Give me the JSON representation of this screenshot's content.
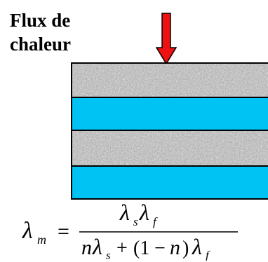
{
  "title": {
    "line1": "Flux de",
    "line2": "chaleur"
  },
  "arrow": {
    "icon": "down-arrow-icon",
    "fill": "#ee1111",
    "stroke": "#000000"
  },
  "layers": [
    {
      "kind": "solid",
      "texture": "granite-noise"
    },
    {
      "kind": "fluid",
      "color": "#00c3f4"
    },
    {
      "kind": "solid",
      "texture": "granite-noise"
    },
    {
      "kind": "fluid",
      "color": "#00c3f4"
    }
  ],
  "formula": {
    "lhs_symbol": "λ",
    "lhs_sub": "m",
    "equals": "=",
    "num_sym1": "λ",
    "num_sub1": "s",
    "num_sym2": "λ",
    "num_sub2": "f",
    "den_n1": "n",
    "den_sym1": "λ",
    "den_sub1": "s",
    "den_plus": "+",
    "den_paren_open": "(1",
    "den_minus": "−",
    "den_n2": "n",
    "den_paren_close": ")",
    "den_sym2": "λ",
    "den_sub2": "f"
  }
}
